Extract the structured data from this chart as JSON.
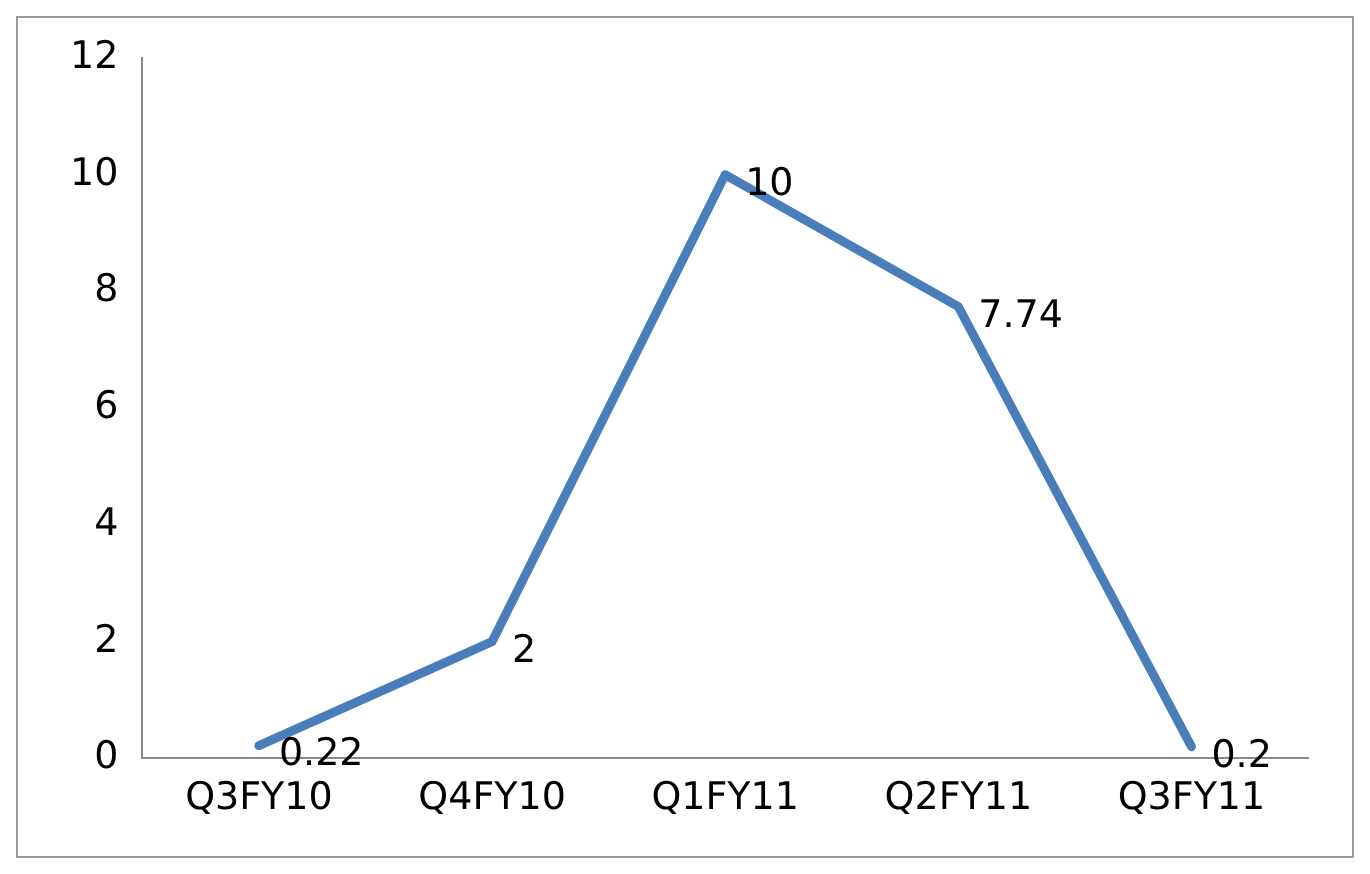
{
  "chart_data": {
    "type": "line",
    "categories": [
      "Q3FY10",
      "Q4FY10",
      "Q1FY11",
      "Q2FY11",
      "Q3FY11"
    ],
    "series": [
      {
        "color": "#4a7ebb",
        "values": [
          0.22,
          2,
          10,
          7.74,
          0.2
        ]
      }
    ],
    "ylim": [
      0,
      12
    ],
    "yticks": [
      0,
      2,
      4,
      6,
      8,
      10,
      12
    ],
    "grid": false,
    "legend": false,
    "marker": "none",
    "line_style": "solid",
    "data_labels": true
  }
}
